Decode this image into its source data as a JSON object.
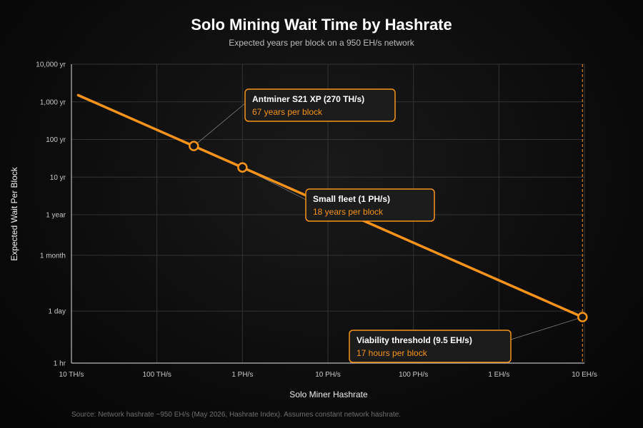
{
  "chart_data": {
    "type": "line",
    "title": "Solo Mining Wait Time by Hashrate",
    "subtitle": "Expected years per block on a 950 EH/s network",
    "xlabel": "Solo Miner Hashrate",
    "ylabel": "Expected Wait Per Block",
    "source": "Source: Network hashrate ~950 EH/s (May 2026, Hashrate Index). Assumes constant network hashrate.",
    "x_scale": "log",
    "y_scale": "log",
    "x_unit": "TH/s",
    "y_unit": "years",
    "xlim": [
      10,
      10000000
    ],
    "ylim": [
      0.000114,
      10000
    ],
    "x_ticks": [
      {
        "value": 10,
        "label": "10 TH/s"
      },
      {
        "value": 100,
        "label": "100 TH/s"
      },
      {
        "value": 1000,
        "label": "1 PH/s"
      },
      {
        "value": 10000,
        "label": "10 PH/s"
      },
      {
        "value": 100000,
        "label": "100 PH/s"
      },
      {
        "value": 1000000,
        "label": "1 EH/s"
      },
      {
        "value": 10000000,
        "label": "10 EH/s"
      }
    ],
    "y_ticks": [
      {
        "value": 10000,
        "label": "10,000 yr"
      },
      {
        "value": 1000,
        "label": "1,000 yr"
      },
      {
        "value": 100,
        "label": "100 yr"
      },
      {
        "value": 10,
        "label": "10 yr"
      },
      {
        "value": 1,
        "label": "1 year"
      },
      {
        "value": 0.0833,
        "label": "1 month"
      },
      {
        "value": 0.00274,
        "label": "1 day"
      },
      {
        "value": 0.000114,
        "label": "1 hr"
      }
    ],
    "grid": true,
    "line_color": "#f7931a",
    "series": [
      {
        "x": [
          12,
          9500000
        ],
        "y": [
          1500,
          0.0019
        ]
      }
    ],
    "markers": [
      {
        "x": 270,
        "y": 67
      },
      {
        "x": 1000,
        "y": 18
      },
      {
        "x": 9500000,
        "y": 0.0019
      }
    ],
    "annotations": [
      {
        "title": "Antminer S21 XP (270 TH/s)",
        "text": "67 years per block"
      },
      {
        "title": "Small fleet (1 PH/s)",
        "text": "18 years per block"
      },
      {
        "title": "Viability threshold (9.5 EH/s)",
        "text": "17 hours per block"
      }
    ],
    "threshold_x": 9500000
  }
}
